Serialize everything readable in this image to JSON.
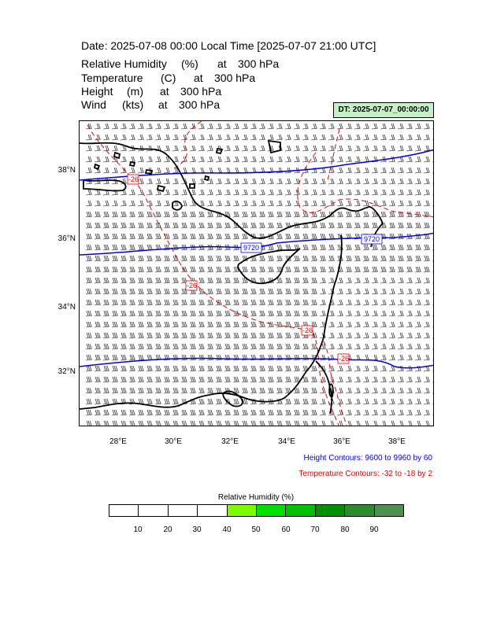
{
  "title": "Date: 2025-07-08  00:00 Local Time [2025-07-07  21:00 UTC]",
  "fields": [
    {
      "name": "Relative Humidity",
      "unit": "(%)",
      "at": "at",
      "level": "300 hPa"
    },
    {
      "name": "Temperature",
      "unit": "(C)",
      "at": "at",
      "level": "300 hPa"
    },
    {
      "name": "Height",
      "unit": "(m)",
      "at": "at",
      "level": "300 hPa"
    },
    {
      "name": "Wind",
      "unit": "(kts)",
      "at": "at",
      "level": "300 hPa"
    }
  ],
  "dt_label": "DT: 2025-07-07_00:00:00",
  "lat_labels": [
    "38°N",
    "36°N",
    "34°N",
    "32°N"
  ],
  "lon_labels": [
    "28°E",
    "30°E",
    "32°E",
    "34°E",
    "36°E",
    "38°E"
  ],
  "height_contours_note": "Height Contours: 9600 to 9960 by 60",
  "temperature_contours_note": "Temperature Contours: -32 to -18 by 2",
  "height_contour_labels": [
    "9720",
    "9720"
  ],
  "temperature_contour_labels": [
    "-26",
    "-26",
    "-26",
    "-26"
  ],
  "colorbar": {
    "title": "Relative Humidity  (%)",
    "labels": [
      "10",
      "20",
      "30",
      "40",
      "50",
      "60",
      "70",
      "80",
      "90"
    ],
    "colors": [
      "#ffffff",
      "#ffffff",
      "#ffffff",
      "#ffffff",
      "#7cfc00",
      "#00e000",
      "#00c000",
      "#009000",
      "#2e8b2e",
      "#4f8f4f"
    ]
  },
  "colors": {
    "height_contour": "#0000e0",
    "temperature_contour": "#e00000",
    "coastline": "#000000"
  }
}
